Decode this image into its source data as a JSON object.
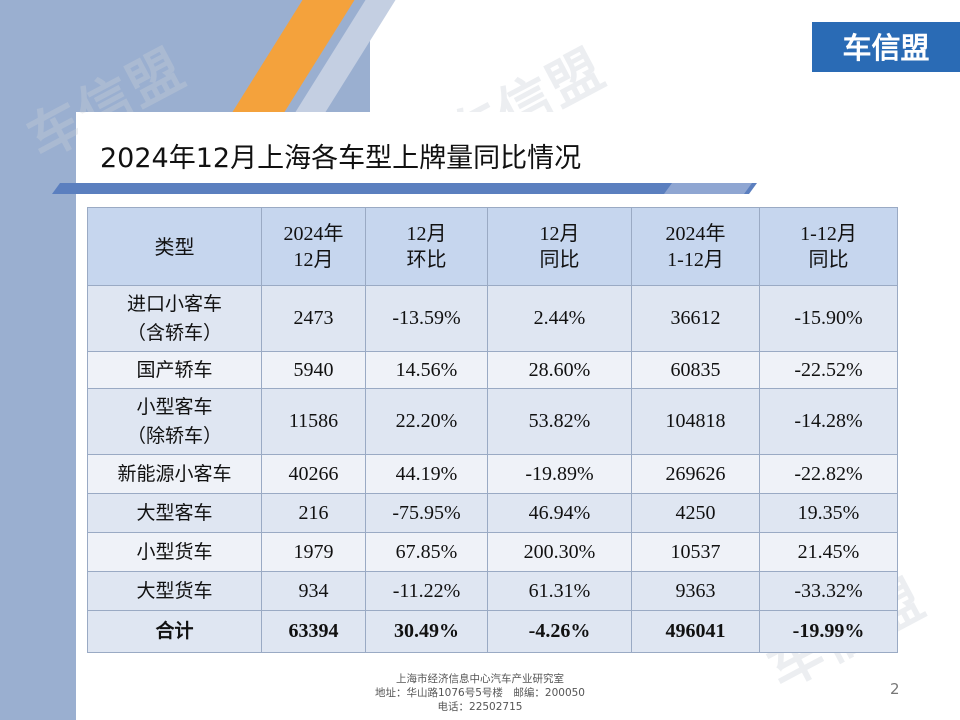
{
  "logo": {
    "text": "车信盟",
    "color": "#2a6bb5"
  },
  "watermark": "车信盟",
  "title": "2024年12月上海各车型上牌量同比情况",
  "table": {
    "headers": [
      {
        "line1": "类型",
        "line2": ""
      },
      {
        "line1": "2024年",
        "line2": "12月"
      },
      {
        "line1": "12月",
        "line2": "环比"
      },
      {
        "line1": "12月",
        "line2": "同比"
      },
      {
        "line1": "2024年",
        "line2": "1-12月"
      },
      {
        "line1": "1-12月",
        "line2": "同比"
      }
    ],
    "rows": [
      {
        "type_line1": "进口小客车",
        "type_line2": "（含轿车）",
        "dec": "2473",
        "mom": "-13.59%",
        "yoy": "2.44%",
        "ytd": "36612",
        "ytd_yoy": "-15.90%"
      },
      {
        "type_line1": "国产轿车",
        "type_line2": "",
        "dec": "5940",
        "mom": "14.56%",
        "yoy": "28.60%",
        "ytd": "60835",
        "ytd_yoy": "-22.52%"
      },
      {
        "type_line1": "小型客车",
        "type_line2": "（除轿车）",
        "dec": "11586",
        "mom": "22.20%",
        "yoy": "53.82%",
        "ytd": "104818",
        "ytd_yoy": "-14.28%"
      },
      {
        "type_line1": "新能源小客车",
        "type_line2": "",
        "dec": "40266",
        "mom": "44.19%",
        "yoy": "-19.89%",
        "ytd": "269626",
        "ytd_yoy": "-22.82%"
      },
      {
        "type_line1": "大型客车",
        "type_line2": "",
        "dec": "216",
        "mom": "-75.95%",
        "yoy": "46.94%",
        "ytd": "4250",
        "ytd_yoy": "19.35%"
      },
      {
        "type_line1": "小型货车",
        "type_line2": "",
        "dec": "1979",
        "mom": "67.85%",
        "yoy": "200.30%",
        "ytd": "10537",
        "ytd_yoy": "21.45%"
      },
      {
        "type_line1": "大型货车",
        "type_line2": "",
        "dec": "934",
        "mom": "-11.22%",
        "yoy": "61.31%",
        "ytd": "9363",
        "ytd_yoy": "-33.32%"
      }
    ],
    "total": {
      "type": "合计",
      "dec": "63394",
      "mom": "30.49%",
      "yoy": "-4.26%",
      "ytd": "496041",
      "ytd_yoy": "-19.99%"
    }
  },
  "footer": {
    "line1": "上海市经济信息中心汽车产业研究室",
    "line2": "地址：华山路1076号5号楼　邮编：200050",
    "line3": "电话：22502715"
  },
  "page_number": "2",
  "colors": {
    "accent_orange": "#f4a23c",
    "side_blue": "#9aafd0",
    "header_fill": "#c6d6ee",
    "row_fill_odd": "#dfe6f2",
    "row_fill_even": "#eff2f8"
  }
}
